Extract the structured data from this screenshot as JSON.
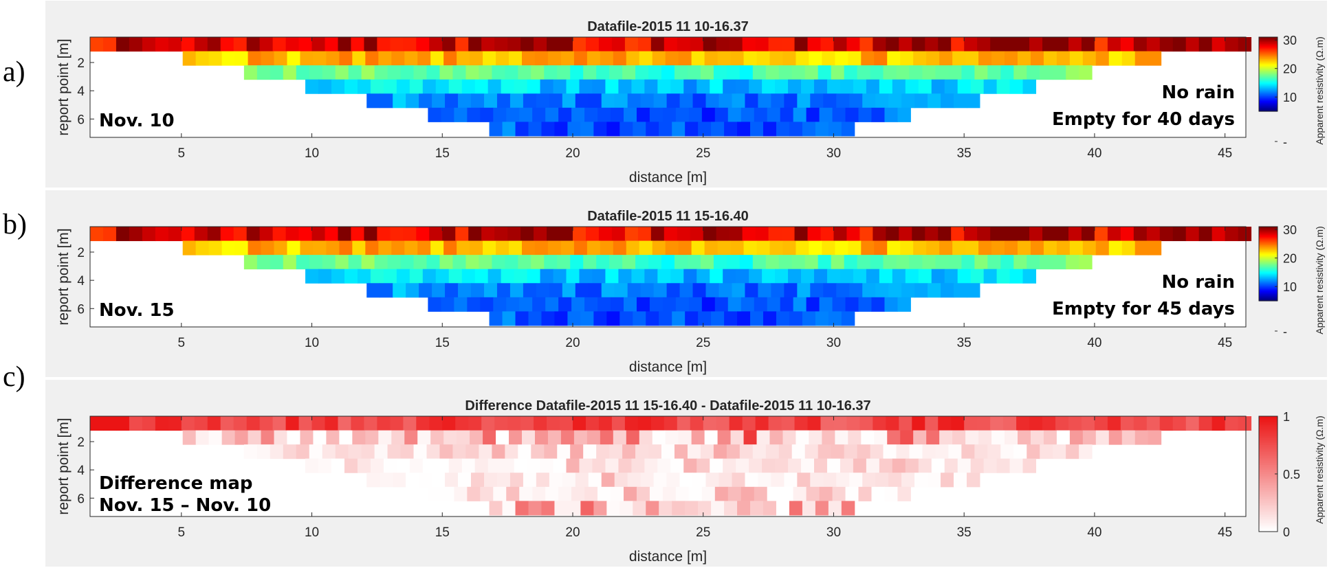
{
  "panel_letters": [
    "a)",
    "b)",
    "c)"
  ],
  "chart_data": [
    {
      "type": "heatmap",
      "title": "Datafile-2015 11 10-16.37",
      "xlabel": "distance [m]",
      "ylabel": "report point [m]",
      "xlim": [
        1.5,
        45.8
      ],
      "ylim": [
        0.2,
        7.3
      ],
      "xticks": [
        5,
        10,
        15,
        20,
        25,
        30,
        35,
        40,
        45
      ],
      "yticks": [
        2,
        4,
        6
      ],
      "colorbar": {
        "label": "Apparent resistivity (Ω.m)",
        "ticks": [
          "30",
          "20",
          "10",
          "-"
        ],
        "range": [
          5,
          31
        ],
        "colormap": "jet"
      },
      "annotations": {
        "left": [
          "Nov. 10"
        ],
        "right": [
          "No rain",
          "Empty for 40 days"
        ]
      },
      "pseudosection": {
        "levels": 7,
        "x_spacing_m": 0.5,
        "level_spacing_m": 1.0,
        "approx_values_by_level": [
          29,
          23,
          18,
          15,
          13,
          12,
          12
        ]
      },
      "seed": 7
    },
    {
      "type": "heatmap",
      "title": "Datafile-2015 11 15-16.40",
      "xlabel": "distance [m]",
      "ylabel": "report point [m]",
      "xlim": [
        1.5,
        45.8
      ],
      "ylim": [
        0.2,
        7.3
      ],
      "xticks": [
        5,
        10,
        15,
        20,
        25,
        30,
        35,
        40,
        45
      ],
      "yticks": [
        2,
        4,
        6
      ],
      "colorbar": {
        "label": "Apparent resistivity (Ω.m)",
        "ticks": [
          "30",
          "20",
          "10",
          "-"
        ],
        "range": [
          5,
          31
        ],
        "colormap": "jet"
      },
      "annotations": {
        "left": [
          "Nov. 15"
        ],
        "right": [
          "No rain",
          "Empty for 45 days"
        ]
      },
      "pseudosection": {
        "levels": 7,
        "x_spacing_m": 0.5,
        "level_spacing_m": 1.0,
        "approx_values_by_level": [
          29,
          23,
          18,
          15,
          13,
          12,
          12
        ]
      },
      "seed": 7
    },
    {
      "type": "heatmap",
      "title": "Difference Datafile-2015 11 15-16.40 - Datafile-2015 11 10-16.37",
      "xlabel": "distance [m]",
      "ylabel": "report point [m]",
      "xlim": [
        1.5,
        45.8
      ],
      "ylim": [
        0.2,
        7.3
      ],
      "xticks": [
        5,
        10,
        15,
        20,
        25,
        30,
        35,
        40,
        45
      ],
      "yticks": [
        2,
        4,
        6
      ],
      "colorbar": {
        "label": "Apparent resistivity (Ω.m)",
        "ticks": [
          "1",
          "0.5",
          "0"
        ],
        "range": [
          0,
          1
        ],
        "colormap": "white-red"
      },
      "annotations": {
        "left": [
          "Difference map",
          "Nov. 15 – Nov. 10"
        ],
        "right": []
      },
      "pseudosection": {
        "levels": 7,
        "x_spacing_m": 0.5,
        "level_spacing_m": 1.0,
        "approx_values_by_level": [
          0.9,
          0.25,
          0.12,
          0.1,
          0.1,
          0.12,
          0.2
        ]
      },
      "seed": 21
    }
  ]
}
